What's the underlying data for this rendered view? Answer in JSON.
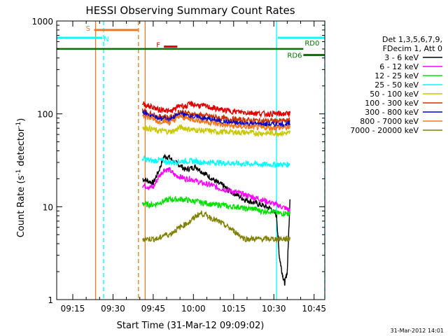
{
  "chart_data": {
    "type": "line",
    "title": "HESSI Observing Summary Count Rates",
    "xlabel": "Start Time (31-Mar-12 09:09:02)",
    "ylabel_main": "Count Rate (s",
    "ylabel_sup1": "-1",
    "ylabel_mid": " detector",
    "ylabel_sup2": "-1",
    "ylabel_end": ")",
    "footer_date": "31-Mar-2012 14:01",
    "y_scale": "log",
    "xlim_minutes": [
      0,
      100
    ],
    "ylim": [
      1,
      1000
    ],
    "x_ticks": [
      {
        "label": "09:15",
        "minute": 6
      },
      {
        "label": "09:30",
        "minute": 21
      },
      {
        "label": "09:45",
        "minute": 36
      },
      {
        "label": "10:00",
        "minute": 51
      },
      {
        "label": "10:15",
        "minute": 66
      },
      {
        "label": "10:30",
        "minute": 81
      },
      {
        "label": "10:45",
        "minute": 96
      }
    ],
    "y_ticks": [
      {
        "label": "1",
        "value": 1
      },
      {
        "label": "10",
        "value": 10
      },
      {
        "label": "100",
        "value": 100
      },
      {
        "label": "1000",
        "value": 1000
      }
    ],
    "legend": {
      "header": [
        "Det 1,3,5,6,7,9,",
        "FDecim 1, Att 0"
      ],
      "placement": "right"
    },
    "flags": [
      {
        "label": "S",
        "color": "#f07820",
        "start": 14,
        "end": 30.5,
        "level": 800,
        "style": "bar"
      },
      {
        "label": "N",
        "color": "#00ffff",
        "start": 0,
        "end": 17,
        "level": 660,
        "style": "bar"
      },
      {
        "label": "N",
        "color": "#00ffff",
        "start": 82.5,
        "end": 100,
        "level": 660,
        "style": "bar"
      },
      {
        "label": "F",
        "color": "#e00000",
        "start": 40,
        "end": 45,
        "level": 530,
        "style": "bar"
      },
      {
        "label": "RD0",
        "color": "#007000",
        "start": 0,
        "end": 92,
        "level": 500,
        "style": "line"
      },
      {
        "label": "RD6",
        "color": "#007000",
        "start": 92,
        "end": 100,
        "level": 430,
        "style": "bar"
      }
    ],
    "vlines": [
      {
        "minute": 14.5,
        "color": "#f07820",
        "dash": false
      },
      {
        "minute": 17.5,
        "color": "#00ffff",
        "dash": true
      },
      {
        "minute": 30.5,
        "color": "#f07820",
        "dash": true
      },
      {
        "minute": 33,
        "color": "#f07820",
        "dash": false
      },
      {
        "minute": 82,
        "color": "#00ffff",
        "dash": false
      },
      {
        "minute": 100,
        "color": "#00ffff",
        "dash": true
      }
    ],
    "data_start": 32,
    "data_end": 87,
    "series": [
      {
        "name": "3 - 6 keV",
        "color": "#000000",
        "x": [
          32,
          34,
          36,
          38,
          40,
          42,
          44,
          46,
          48,
          50,
          52,
          54,
          56,
          58,
          60,
          62,
          64,
          66,
          68,
          70,
          72,
          74,
          76,
          78,
          80,
          82,
          83,
          84,
          85,
          86,
          87
        ],
        "y": [
          20,
          19,
          18,
          24,
          35,
          34,
          30,
          28,
          25,
          26,
          27,
          24,
          22,
          20,
          18,
          17,
          15,
          14,
          13,
          12,
          11.5,
          11,
          10.5,
          10,
          9.5,
          8,
          3,
          2,
          1.5,
          2,
          12
        ]
      },
      {
        "name": "6 - 12 keV",
        "color": "#ff00ff",
        "x": [
          32,
          34,
          36,
          38,
          40,
          42,
          44,
          46,
          48,
          50,
          52,
          54,
          56,
          58,
          60,
          62,
          64,
          66,
          68,
          70,
          72,
          74,
          76,
          78,
          80,
          82,
          84,
          86,
          87
        ],
        "y": [
          17,
          16.5,
          16,
          21,
          25,
          25,
          22,
          21,
          20,
          20,
          19,
          18,
          17.5,
          17,
          16,
          15.5,
          15,
          14.5,
          14,
          13.5,
          13,
          12.5,
          12,
          11.5,
          11,
          10.5,
          10,
          9.5,
          9
        ]
      },
      {
        "name": "12 - 25 keV",
        "color": "#00e000",
        "x": [
          32,
          34,
          36,
          38,
          40,
          42,
          44,
          46,
          48,
          50,
          52,
          54,
          56,
          58,
          60,
          62,
          64,
          66,
          68,
          70,
          72,
          74,
          76,
          78,
          80,
          82,
          84,
          86,
          87
        ],
        "y": [
          11,
          10.5,
          10.5,
          11,
          11.5,
          12,
          12,
          12,
          12,
          11.5,
          11.5,
          11,
          11,
          10.5,
          10.5,
          10.5,
          10,
          10,
          10,
          9.5,
          9.5,
          9.5,
          9,
          9,
          9,
          8.5,
          8.5,
          8.5,
          8.5
        ]
      },
      {
        "name": "25 - 50 keV",
        "color": "#00ffff",
        "x": [
          32,
          34,
          36,
          38,
          40,
          42,
          44,
          46,
          48,
          50,
          52,
          54,
          56,
          58,
          60,
          62,
          64,
          66,
          68,
          70,
          72,
          74,
          76,
          78,
          80,
          82,
          84,
          86,
          87
        ],
        "y": [
          33,
          32,
          31,
          32,
          31,
          30,
          30,
          31,
          31,
          31,
          31,
          30,
          30,
          30,
          30,
          29.5,
          29.5,
          29.5,
          29,
          29,
          29,
          29,
          28.5,
          28.5,
          28.5,
          28.5,
          28.5,
          28.5,
          29
        ]
      },
      {
        "name": "50 - 100 keV",
        "color": "#c8c800",
        "x": [
          32,
          34,
          36,
          38,
          40,
          42,
          44,
          46,
          48,
          50,
          52,
          54,
          56,
          58,
          60,
          62,
          64,
          66,
          68,
          70,
          72,
          74,
          76,
          78,
          80,
          82,
          84,
          86,
          87
        ],
        "y": [
          72,
          70,
          68,
          65,
          66,
          64,
          66,
          72,
          70,
          68,
          67,
          66,
          66,
          65,
          64,
          64,
          64,
          64,
          63,
          63,
          63,
          62,
          62,
          62,
          62,
          62,
          62,
          62,
          63
        ]
      },
      {
        "name": "100 - 300 keV",
        "color": "#c83200",
        "x": [
          32,
          34,
          36,
          38,
          40,
          42,
          44,
          46,
          48,
          50,
          52,
          54,
          56,
          58,
          60,
          62,
          64,
          66,
          68,
          70,
          72,
          74,
          76,
          78,
          80,
          82,
          84,
          86,
          87
        ],
        "y": [
          110,
          102,
          98,
          92,
          95,
          90,
          96,
          107,
          102,
          100,
          98,
          96,
          95,
          93,
          91,
          89,
          88,
          87,
          86,
          86,
          85,
          85,
          84,
          84,
          84,
          84,
          84,
          84,
          85
        ]
      },
      {
        "name": "300 - 800 keV",
        "color": "#0000d0",
        "x": [
          32,
          34,
          36,
          38,
          40,
          42,
          44,
          46,
          48,
          50,
          52,
          54,
          56,
          58,
          60,
          62,
          64,
          66,
          68,
          70,
          72,
          74,
          76,
          78,
          80,
          82,
          84,
          86,
          87
        ],
        "y": [
          105,
          98,
          94,
          88,
          90,
          85,
          92,
          100,
          96,
          94,
          92,
          90,
          88,
          86,
          84,
          82,
          81,
          80,
          79,
          79,
          78,
          78,
          77,
          77,
          77,
          77,
          77,
          77,
          78
        ]
      },
      {
        "name": "800 - 7000 keV",
        "color": "#f07820",
        "x": [
          32,
          34,
          36,
          38,
          40,
          42,
          44,
          46,
          48,
          50,
          52,
          54,
          56,
          58,
          60,
          62,
          64,
          66,
          68,
          70,
          72,
          74,
          76,
          78,
          80,
          82,
          84,
          86,
          87
        ],
        "y": [
          98,
          92,
          88,
          82,
          85,
          80,
          86,
          95,
          90,
          88,
          86,
          84,
          82,
          80,
          78,
          76,
          75,
          74,
          73,
          73,
          72,
          72,
          71,
          71,
          71,
          71,
          71,
          71,
          72
        ]
      },
      {
        "name": "7000 - 20000 keV",
        "color": "#808000",
        "x": [
          32,
          34,
          36,
          38,
          40,
          42,
          44,
          46,
          48,
          50,
          52,
          54,
          56,
          58,
          60,
          62,
          64,
          66,
          68,
          70,
          72,
          74,
          76,
          78,
          80,
          82,
          84,
          86,
          87
        ],
        "y": [
          4.5,
          4.5,
          4.5,
          4.5,
          5,
          5,
          5.5,
          6,
          6.5,
          7,
          8,
          8.5,
          8,
          7.5,
          7,
          6.5,
          6,
          5.5,
          5,
          4.5,
          4.5,
          4.5,
          4.5,
          4.5,
          4.5,
          4.5,
          4.5,
          4.5,
          4.5
        ]
      },
      {
        "name": "extra-red",
        "color": "#e00000",
        "legend": false,
        "x": [
          32,
          34,
          36,
          38,
          40,
          42,
          44,
          46,
          48,
          50,
          52,
          54,
          56,
          58,
          60,
          62,
          64,
          66,
          68,
          70,
          72,
          74,
          76,
          78,
          80,
          82,
          84,
          86,
          87
        ],
        "y": [
          130,
          122,
          118,
          110,
          112,
          105,
          112,
          125,
          120,
          128,
          125,
          122,
          120,
          116,
          113,
          110,
          108,
          106,
          105,
          104,
          103,
          102,
          101,
          100,
          100,
          100,
          100,
          100,
          102
        ]
      }
    ]
  }
}
